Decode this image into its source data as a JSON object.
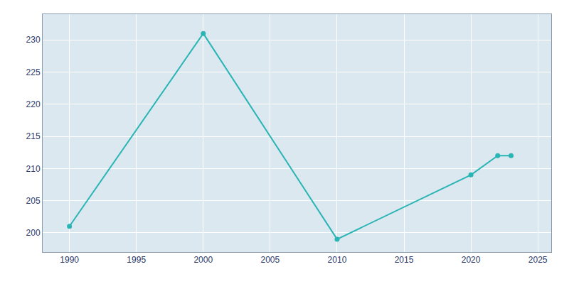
{
  "chart_data": {
    "type": "line",
    "x": [
      1990,
      2000,
      2010,
      2020,
      2022,
      2023
    ],
    "values": [
      201,
      231,
      199,
      209,
      212,
      212
    ],
    "color": "#2ab5b5",
    "marker": "circle",
    "xlim": [
      1988,
      2026
    ],
    "ylim": [
      197,
      234
    ],
    "xticks": [
      1990,
      1995,
      2000,
      2005,
      2010,
      2015,
      2020,
      2025
    ],
    "yticks": [
      200,
      205,
      210,
      215,
      220,
      225,
      230
    ],
    "grid": true
  }
}
